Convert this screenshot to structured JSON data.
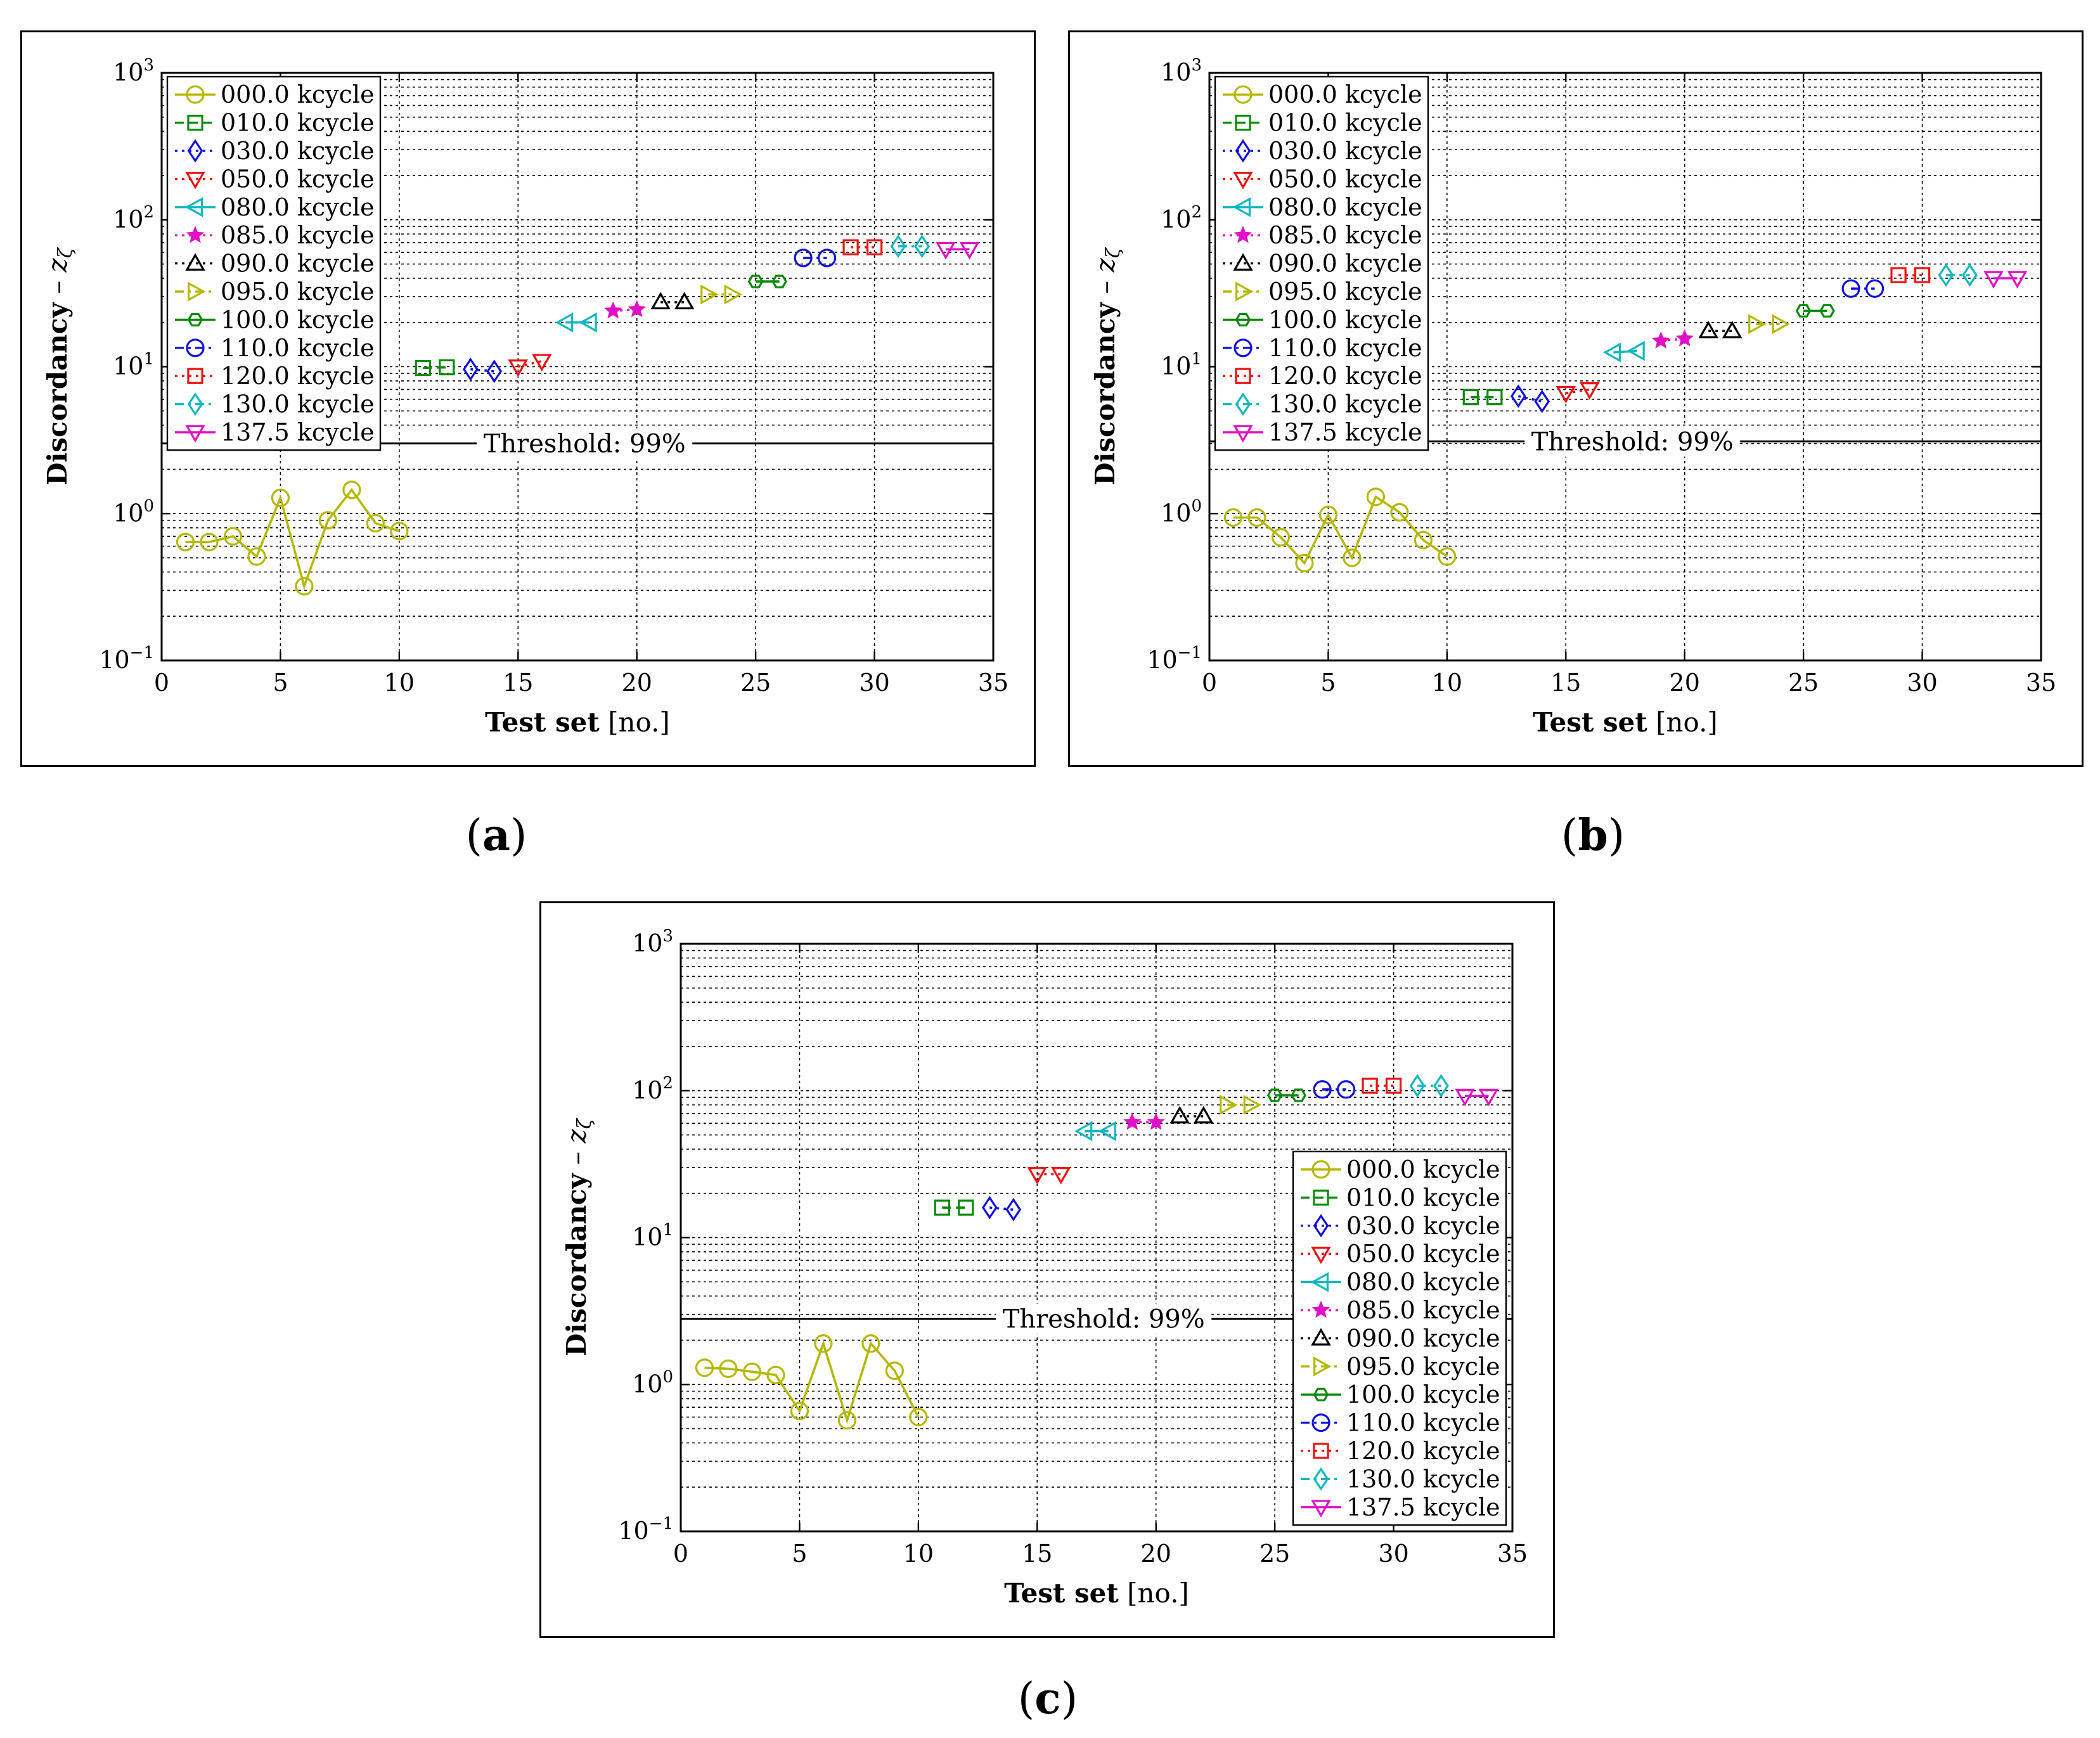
{
  "figure": {
    "captions": {
      "a": "a",
      "b": "b",
      "c": "c"
    }
  },
  "legend_entries": [
    "000.0 kcycle",
    "010.0 kcycle",
    "030.0 kcycle",
    "050.0 kcycle",
    "080.0 kcycle",
    "085.0 kcycle",
    "090.0 kcycle",
    "095.0 kcycle",
    "100.0 kcycle",
    "110.0 kcycle",
    "120.0 kcycle",
    "130.0 kcycle",
    "137.5 kcycle"
  ],
  "series_styles": [
    {
      "color": "#b5b800",
      "marker": "circle",
      "line": "solid"
    },
    {
      "color": "#0a8a0a",
      "marker": "square",
      "line": "dashed"
    },
    {
      "color": "#1010e0",
      "marker": "diamond",
      "line": "dotted"
    },
    {
      "color": "#ee1111",
      "marker": "triangle-down",
      "line": "dotted"
    },
    {
      "color": "#10b8c0",
      "marker": "triangle-left",
      "line": "solid"
    },
    {
      "color": "#e010c8",
      "marker": "star",
      "line": "dotted"
    },
    {
      "color": "#000000",
      "marker": "triangle-up",
      "line": "dotted"
    },
    {
      "color": "#b5b800",
      "marker": "triangle-right",
      "line": "dashdot"
    },
    {
      "color": "#0a8a0a",
      "marker": "hexagon",
      "line": "solid"
    },
    {
      "color": "#1010e0",
      "marker": "circle",
      "line": "dashdot"
    },
    {
      "color": "#ee1111",
      "marker": "square",
      "line": "dotted"
    },
    {
      "color": "#10b8c0",
      "marker": "diamond",
      "line": "dashdot"
    },
    {
      "color": "#e010c8",
      "marker": "triangle-down",
      "line": "solid"
    }
  ],
  "chart_data": [
    {
      "panel": "a",
      "type": "scatter",
      "xlabel_bold": "Test set",
      "xlabel_unit": "[no.]",
      "ylabel": "Discordancy – z",
      "ylabel_sub": "ζ",
      "xlim": [
        0,
        35
      ],
      "ylim": [
        0.1,
        1000
      ],
      "yscale": "log",
      "xticks": [
        "0",
        "5",
        "10",
        "15",
        "20",
        "25",
        "30",
        "35"
      ],
      "yticks": [
        {
          "base": "10",
          "exp": "−1"
        },
        {
          "base": "10",
          "exp": "0"
        },
        {
          "base": "10",
          "exp": "1"
        },
        {
          "base": "10",
          "exp": "2"
        },
        {
          "base": "10",
          "exp": "3"
        }
      ],
      "threshold": {
        "value": 3.0,
        "label": "Threshold:  99%"
      },
      "legend_location": "upper-left",
      "series": [
        {
          "name": "000.0 kcycle",
          "x": [
            1,
            2,
            3,
            4,
            5,
            6,
            7,
            8,
            9,
            10
          ],
          "y": [
            0.64,
            0.64,
            0.7,
            0.51,
            1.28,
            0.32,
            0.9,
            1.45,
            0.86,
            0.76
          ]
        },
        {
          "name": "010.0 kcycle",
          "x": [
            11,
            12
          ],
          "y": [
            9.8,
            9.9
          ]
        },
        {
          "name": "030.0 kcycle",
          "x": [
            13,
            14
          ],
          "y": [
            9.6,
            9.3
          ]
        },
        {
          "name": "050.0 kcycle",
          "x": [
            15,
            16
          ],
          "y": [
            10.0,
            10.9
          ]
        },
        {
          "name": "080.0 kcycle",
          "x": [
            17,
            18
          ],
          "y": [
            20.0,
            20.0
          ]
        },
        {
          "name": "085.0 kcycle",
          "x": [
            19,
            20
          ],
          "y": [
            24.0,
            24.5
          ]
        },
        {
          "name": "090.0 kcycle",
          "x": [
            21,
            22
          ],
          "y": [
            27.5,
            27.5
          ]
        },
        {
          "name": "095.0 kcycle",
          "x": [
            23,
            24
          ],
          "y": [
            31.0,
            31.0
          ]
        },
        {
          "name": "100.0 kcycle",
          "x": [
            25,
            26
          ],
          "y": [
            38.0,
            38.0
          ]
        },
        {
          "name": "110.0 kcycle",
          "x": [
            27,
            28
          ],
          "y": [
            55.0,
            55.0
          ]
        },
        {
          "name": "120.0 kcycle",
          "x": [
            29,
            30
          ],
          "y": [
            65.0,
            65.0
          ]
        },
        {
          "name": "130.0 kcycle",
          "x": [
            31,
            32
          ],
          "y": [
            66.0,
            66.0
          ]
        },
        {
          "name": "137.5 kcycle",
          "x": [
            33,
            34
          ],
          "y": [
            63.0,
            63.0
          ]
        }
      ]
    },
    {
      "panel": "b",
      "type": "scatter",
      "xlabel_bold": "Test set",
      "xlabel_unit": "[no.]",
      "ylabel": "Discordancy – z",
      "ylabel_sub": "ζ",
      "xlim": [
        0,
        35
      ],
      "ylim": [
        0.1,
        1000
      ],
      "yscale": "log",
      "xticks": [
        "0",
        "5",
        "10",
        "15",
        "20",
        "25",
        "30",
        "35"
      ],
      "yticks": [
        {
          "base": "10",
          "exp": "−1"
        },
        {
          "base": "10",
          "exp": "0"
        },
        {
          "base": "10",
          "exp": "1"
        },
        {
          "base": "10",
          "exp": "2"
        },
        {
          "base": "10",
          "exp": "3"
        }
      ],
      "threshold": {
        "value": 3.1,
        "label": "Threshold:  99%"
      },
      "legend_location": "upper-left",
      "series": [
        {
          "name": "000.0 kcycle",
          "x": [
            1,
            2,
            3,
            4,
            5,
            6,
            7,
            8,
            9,
            10
          ],
          "y": [
            0.94,
            0.94,
            0.69,
            0.46,
            0.98,
            0.5,
            1.3,
            1.02,
            0.66,
            0.51
          ]
        },
        {
          "name": "010.0 kcycle",
          "x": [
            11,
            12
          ],
          "y": [
            6.2,
            6.2
          ]
        },
        {
          "name": "030.0 kcycle",
          "x": [
            13,
            14
          ],
          "y": [
            6.3,
            5.8
          ]
        },
        {
          "name": "050.0 kcycle",
          "x": [
            15,
            16
          ],
          "y": [
            6.6,
            7.0
          ]
        },
        {
          "name": "080.0 kcycle",
          "x": [
            17,
            18
          ],
          "y": [
            12.5,
            12.8
          ]
        },
        {
          "name": "085.0 kcycle",
          "x": [
            19,
            20
          ],
          "y": [
            15.0,
            15.5
          ]
        },
        {
          "name": "090.0 kcycle",
          "x": [
            21,
            22
          ],
          "y": [
            17.5,
            17.5
          ]
        },
        {
          "name": "095.0 kcycle",
          "x": [
            23,
            24
          ],
          "y": [
            19.5,
            19.5
          ]
        },
        {
          "name": "100.0 kcycle",
          "x": [
            25,
            26
          ],
          "y": [
            24.0,
            24.0
          ]
        },
        {
          "name": "110.0 kcycle",
          "x": [
            27,
            28
          ],
          "y": [
            34.0,
            34.0
          ]
        },
        {
          "name": "120.0 kcycle",
          "x": [
            29,
            30
          ],
          "y": [
            42.0,
            42.0
          ]
        },
        {
          "name": "130.0 kcycle",
          "x": [
            31,
            32
          ],
          "y": [
            42.0,
            42.0
          ]
        },
        {
          "name": "137.5 kcycle",
          "x": [
            33,
            34
          ],
          "y": [
            40.0,
            40.0
          ]
        }
      ]
    },
    {
      "panel": "c",
      "type": "scatter",
      "xlabel_bold": "Test set",
      "xlabel_unit": "[no.]",
      "ylabel": "Discordancy – z",
      "ylabel_sub": "ζ",
      "xlim": [
        0,
        35
      ],
      "ylim": [
        0.1,
        1000
      ],
      "yscale": "log",
      "xticks": [
        "0",
        "5",
        "10",
        "15",
        "20",
        "25",
        "30",
        "35"
      ],
      "yticks": [
        {
          "base": "10",
          "exp": "−1"
        },
        {
          "base": "10",
          "exp": "0"
        },
        {
          "base": "10",
          "exp": "1"
        },
        {
          "base": "10",
          "exp": "2"
        },
        {
          "base": "10",
          "exp": "3"
        }
      ],
      "threshold": {
        "value": 2.8,
        "label": "Threshold:  99%"
      },
      "legend_location": "lower-right",
      "series": [
        {
          "name": "000.0 kcycle",
          "x": [
            1,
            2,
            3,
            4,
            5,
            6,
            7,
            8,
            9,
            10
          ],
          "y": [
            1.3,
            1.28,
            1.22,
            1.16,
            0.66,
            1.9,
            0.57,
            1.9,
            1.24,
            0.6
          ]
        },
        {
          "name": "010.0 kcycle",
          "x": [
            11,
            12
          ],
          "y": [
            16.0,
            16.0
          ]
        },
        {
          "name": "030.0 kcycle",
          "x": [
            13,
            14
          ],
          "y": [
            16.0,
            15.5
          ]
        },
        {
          "name": "050.0 kcycle",
          "x": [
            15,
            16
          ],
          "y": [
            27.0,
            27.0
          ]
        },
        {
          "name": "080.0 kcycle",
          "x": [
            17,
            18
          ],
          "y": [
            53.0,
            53.0
          ]
        },
        {
          "name": "085.0 kcycle",
          "x": [
            19,
            20
          ],
          "y": [
            61.0,
            61.0
          ]
        },
        {
          "name": "090.0 kcycle",
          "x": [
            21,
            22
          ],
          "y": [
            67.0,
            67.0
          ]
        },
        {
          "name": "095.0 kcycle",
          "x": [
            23,
            24
          ],
          "y": [
            80.0,
            80.0
          ]
        },
        {
          "name": "100.0 kcycle",
          "x": [
            25,
            26
          ],
          "y": [
            93.0,
            93.0
          ]
        },
        {
          "name": "110.0 kcycle",
          "x": [
            27,
            28
          ],
          "y": [
            102.0,
            102.0
          ]
        },
        {
          "name": "120.0 kcycle",
          "x": [
            29,
            30
          ],
          "y": [
            108.0,
            108.0
          ]
        },
        {
          "name": "130.0 kcycle",
          "x": [
            31,
            32
          ],
          "y": [
            108.0,
            108.0
          ]
        },
        {
          "name": "137.5 kcycle",
          "x": [
            33,
            34
          ],
          "y": [
            92.0,
            92.0
          ]
        }
      ]
    }
  ]
}
